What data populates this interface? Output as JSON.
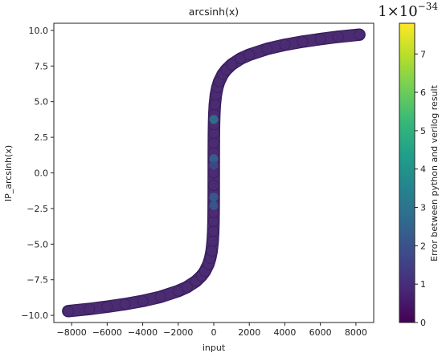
{
  "chart_data": {
    "type": "scatter",
    "title": "arcsinh(x)",
    "xlabel": "input",
    "ylabel": "IP_arcsinh(x)",
    "xlim": [
      -9000,
      9000
    ],
    "ylim": [
      -10.5,
      10.5
    ],
    "x_ticks": [
      -8000,
      -6000,
      -4000,
      -2000,
      0,
      2000,
      4000,
      6000,
      8000
    ],
    "x_tick_labels": [
      "−8000",
      "−6000",
      "−4000",
      "−2000",
      "0",
      "2000",
      "4000",
      "6000",
      "8000"
    ],
    "y_ticks": [
      10.0,
      7.5,
      5.0,
      2.5,
      0.0,
      -2.5,
      -5.0,
      -7.5,
      -10.0
    ],
    "y_tick_labels": [
      "10.0",
      "7.5",
      "5.0",
      "2.5",
      "0.0",
      "−2.5",
      "−5.0",
      "−7.5",
      "−10.0"
    ],
    "grid": false,
    "points": [
      {
        "x": -8192,
        "y": -9.7
      },
      {
        "x": -7000,
        "y": -9.55
      },
      {
        "x": -6000,
        "y": -9.39
      },
      {
        "x": -5000,
        "y": -9.21
      },
      {
        "x": -4000,
        "y": -8.99
      },
      {
        "x": -3000,
        "y": -8.7
      },
      {
        "x": -2000,
        "y": -8.29
      },
      {
        "x": -1500,
        "y": -8.01
      },
      {
        "x": -1000,
        "y": -7.6
      },
      {
        "x": -700,
        "y": -7.24
      },
      {
        "x": -500,
        "y": -6.91
      },
      {
        "x": -300,
        "y": -6.4
      },
      {
        "x": -200,
        "y": -5.99
      },
      {
        "x": -120,
        "y": -5.48
      },
      {
        "x": -60,
        "y": -4.79
      },
      {
        "x": -30,
        "y": -4.09
      },
      {
        "x": -15,
        "y": -3.4
      },
      {
        "x": -8,
        "y": -2.78
      },
      {
        "x": -4,
        "y": -2.09
      },
      {
        "x": -2,
        "y": -1.44
      },
      {
        "x": -1,
        "y": -0.88
      },
      {
        "x": 0,
        "y": 0.0
      },
      {
        "x": 1,
        "y": 0.88
      },
      {
        "x": 2,
        "y": 1.44
      },
      {
        "x": 4,
        "y": 2.09
      },
      {
        "x": 8,
        "y": 2.78
      },
      {
        "x": 15,
        "y": 3.4
      },
      {
        "x": 30,
        "y": 4.09
      },
      {
        "x": 60,
        "y": 4.79
      },
      {
        "x": 120,
        "y": 5.48
      },
      {
        "x": 200,
        "y": 5.99
      },
      {
        "x": 300,
        "y": 6.4
      },
      {
        "x": 500,
        "y": 6.91
      },
      {
        "x": 700,
        "y": 7.24
      },
      {
        "x": 1000,
        "y": 7.6
      },
      {
        "x": 1500,
        "y": 8.01
      },
      {
        "x": 2000,
        "y": 8.29
      },
      {
        "x": 3000,
        "y": 8.7
      },
      {
        "x": 4000,
        "y": 8.99
      },
      {
        "x": 5000,
        "y": 9.21
      },
      {
        "x": 6000,
        "y": 9.39
      },
      {
        "x": 7000,
        "y": 9.55
      },
      {
        "x": 8192,
        "y": 9.7
      }
    ],
    "highlight_points": [
      {
        "x": 0,
        "y": 3.75,
        "error": 3.2
      },
      {
        "x": 0,
        "y": 1.0,
        "error": 2.6
      },
      {
        "x": 0,
        "y": -1.7,
        "error": 2.4
      },
      {
        "x": 0,
        "y": -2.3,
        "error": 2.2
      },
      {
        "x": 0,
        "y": 0.55,
        "error": 1.8
      }
    ],
    "colorbar": {
      "label": "Error between python and verilog result",
      "multiplier": "1×10⁻³⁴",
      "range": [
        0,
        7.8
      ],
      "ticks": [
        0,
        1,
        2,
        3,
        4,
        5,
        6,
        7
      ],
      "colormap": "viridis",
      "colors": [
        "#440154",
        "#482878",
        "#3e4989",
        "#31688e",
        "#26828e",
        "#1f9e89",
        "#35b779",
        "#6ece58",
        "#b5de2b",
        "#fde725"
      ]
    },
    "marker_color": "#4b2c73",
    "marker_edge_color": "#3a1e5e"
  }
}
